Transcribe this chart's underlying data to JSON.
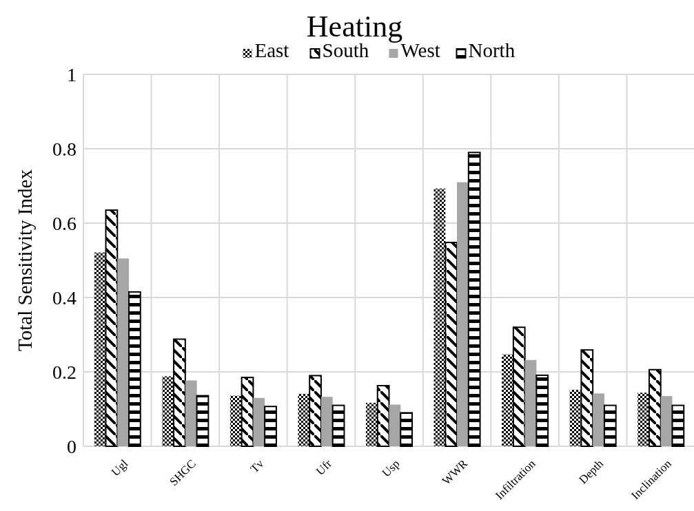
{
  "chart_data": {
    "type": "bar",
    "title": "Heating",
    "ylabel": "Total Sensitivity Index",
    "categories": [
      "Ugl",
      "SHGC",
      "Tv",
      "Ufr",
      "Usp",
      "WWR",
      "Infiltration",
      "Depth",
      "Inclination"
    ],
    "series": [
      {
        "name": "East",
        "color": "#000000",
        "values": [
          0.521,
          0.188,
          0.136,
          0.141,
          0.117,
          0.693,
          0.247,
          0.152,
          0.144
        ]
      },
      {
        "name": "South",
        "color": "#000000",
        "values": [
          0.635,
          0.288,
          0.185,
          0.19,
          0.163,
          0.548,
          0.32,
          0.259,
          0.206
        ]
      },
      {
        "name": "West",
        "color": "#a6a6a6",
        "values": [
          0.505,
          0.177,
          0.13,
          0.133,
          0.112,
          0.71,
          0.232,
          0.142,
          0.135
        ]
      },
      {
        "name": "North",
        "color": "#000000",
        "values": [
          0.415,
          0.136,
          0.107,
          0.11,
          0.09,
          0.79,
          0.191,
          0.11,
          0.11
        ]
      }
    ],
    "ylim": [
      0,
      1
    ],
    "yticks": [
      0,
      0.2,
      0.4,
      0.6,
      0.8,
      1
    ],
    "grid": true,
    "legend": "top"
  }
}
